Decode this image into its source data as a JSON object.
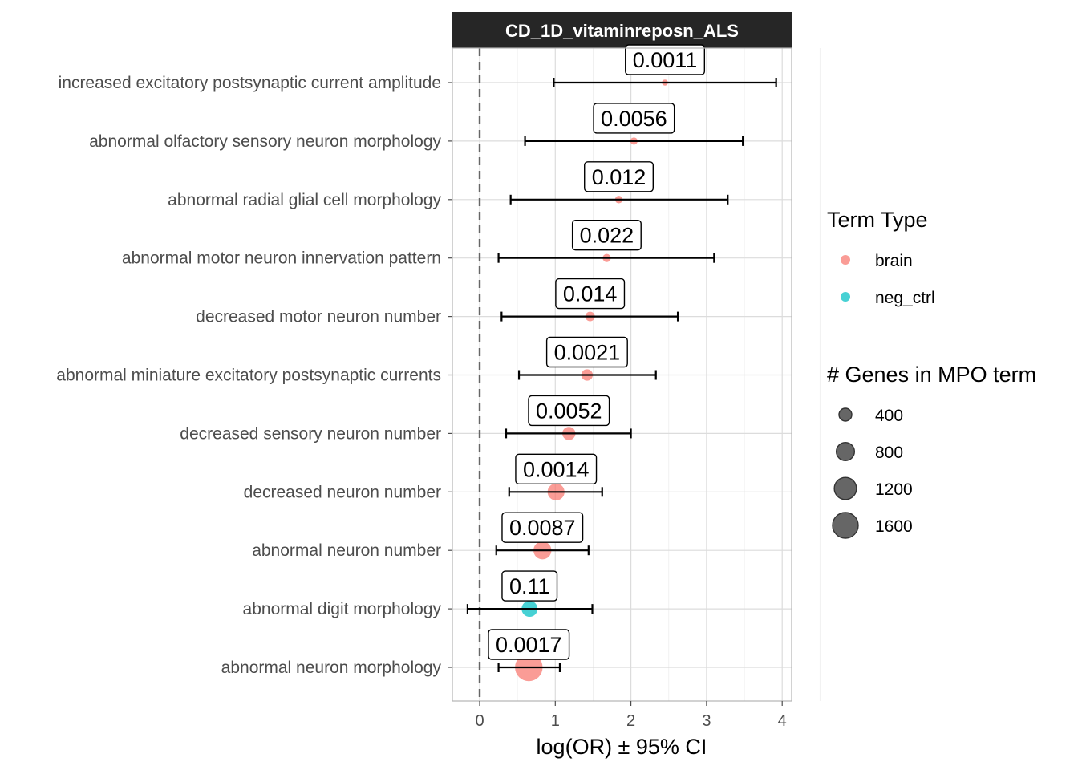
{
  "chart_data": {
    "type": "forest",
    "facet_title": "CD_1D_vitaminreposn_ALS",
    "xlabel": "log(OR) ± 95% CI",
    "ylabel": "",
    "xlim": [
      -0.35,
      4.1
    ],
    "x_ticks": [
      0,
      1,
      2,
      3,
      4
    ],
    "reference_line_x": 0,
    "grid": true,
    "legend_position": "right",
    "colors": {
      "brain": "#F8766D",
      "neg_ctrl": "#00BFC4"
    },
    "rows": [
      {
        "term": "increased excitatory postsynaptic current amplitude",
        "estimate": 2.45,
        "ci_low": 0.98,
        "ci_high": 3.92,
        "label": "0.0011",
        "type": "brain",
        "genes": 90
      },
      {
        "term": "abnormal olfactory sensory neuron morphology",
        "estimate": 2.04,
        "ci_low": 0.6,
        "ci_high": 3.48,
        "label": "0.0056",
        "type": "brain",
        "genes": 130
      },
      {
        "term": "abnormal radial glial cell morphology",
        "estimate": 1.84,
        "ci_low": 0.41,
        "ci_high": 3.28,
        "label": "0.012",
        "type": "brain",
        "genes": 140
      },
      {
        "term": "abnormal motor neuron innervation pattern",
        "estimate": 1.68,
        "ci_low": 0.25,
        "ci_high": 3.1,
        "label": "0.022",
        "type": "brain",
        "genes": 160
      },
      {
        "term": "decreased motor neuron number",
        "estimate": 1.46,
        "ci_low": 0.29,
        "ci_high": 2.62,
        "label": "0.014",
        "type": "brain",
        "genes": 220
      },
      {
        "term": "abnormal miniature excitatory postsynaptic currents",
        "estimate": 1.42,
        "ci_low": 0.52,
        "ci_high": 2.33,
        "label": "0.0021",
        "type": "brain",
        "genes": 320
      },
      {
        "term": "decreased sensory neuron number",
        "estimate": 1.18,
        "ci_low": 0.35,
        "ci_high": 2.0,
        "label": "0.0052",
        "type": "brain",
        "genes": 420
      },
      {
        "term": "decreased neuron number",
        "estimate": 1.01,
        "ci_low": 0.39,
        "ci_high": 1.62,
        "label": "0.0014",
        "type": "brain",
        "genes": 700
      },
      {
        "term": "abnormal neuron number",
        "estimate": 0.83,
        "ci_low": 0.22,
        "ci_high": 1.44,
        "label": "0.0087",
        "type": "brain",
        "genes": 780
      },
      {
        "term": "abnormal digit morphology",
        "estimate": 0.66,
        "ci_low": -0.16,
        "ci_high": 1.49,
        "label": "0.11",
        "type": "neg_ctrl",
        "genes": 620
      },
      {
        "term": "abnormal neuron morphology",
        "estimate": 0.65,
        "ci_low": 0.25,
        "ci_high": 1.06,
        "label": "0.0017",
        "type": "brain",
        "genes": 1850
      }
    ],
    "legend": {
      "color_title": "Term Type",
      "color_items": [
        {
          "label": "brain",
          "key": "brain"
        },
        {
          "label": "neg_ctrl",
          "key": "neg_ctrl"
        }
      ],
      "size_title": "# Genes in MPO term",
      "size_items": [
        {
          "label": "400",
          "value": 400
        },
        {
          "label": "800",
          "value": 800
        },
        {
          "label": "1200",
          "value": 1200
        },
        {
          "label": "1600",
          "value": 1600
        }
      ]
    }
  }
}
